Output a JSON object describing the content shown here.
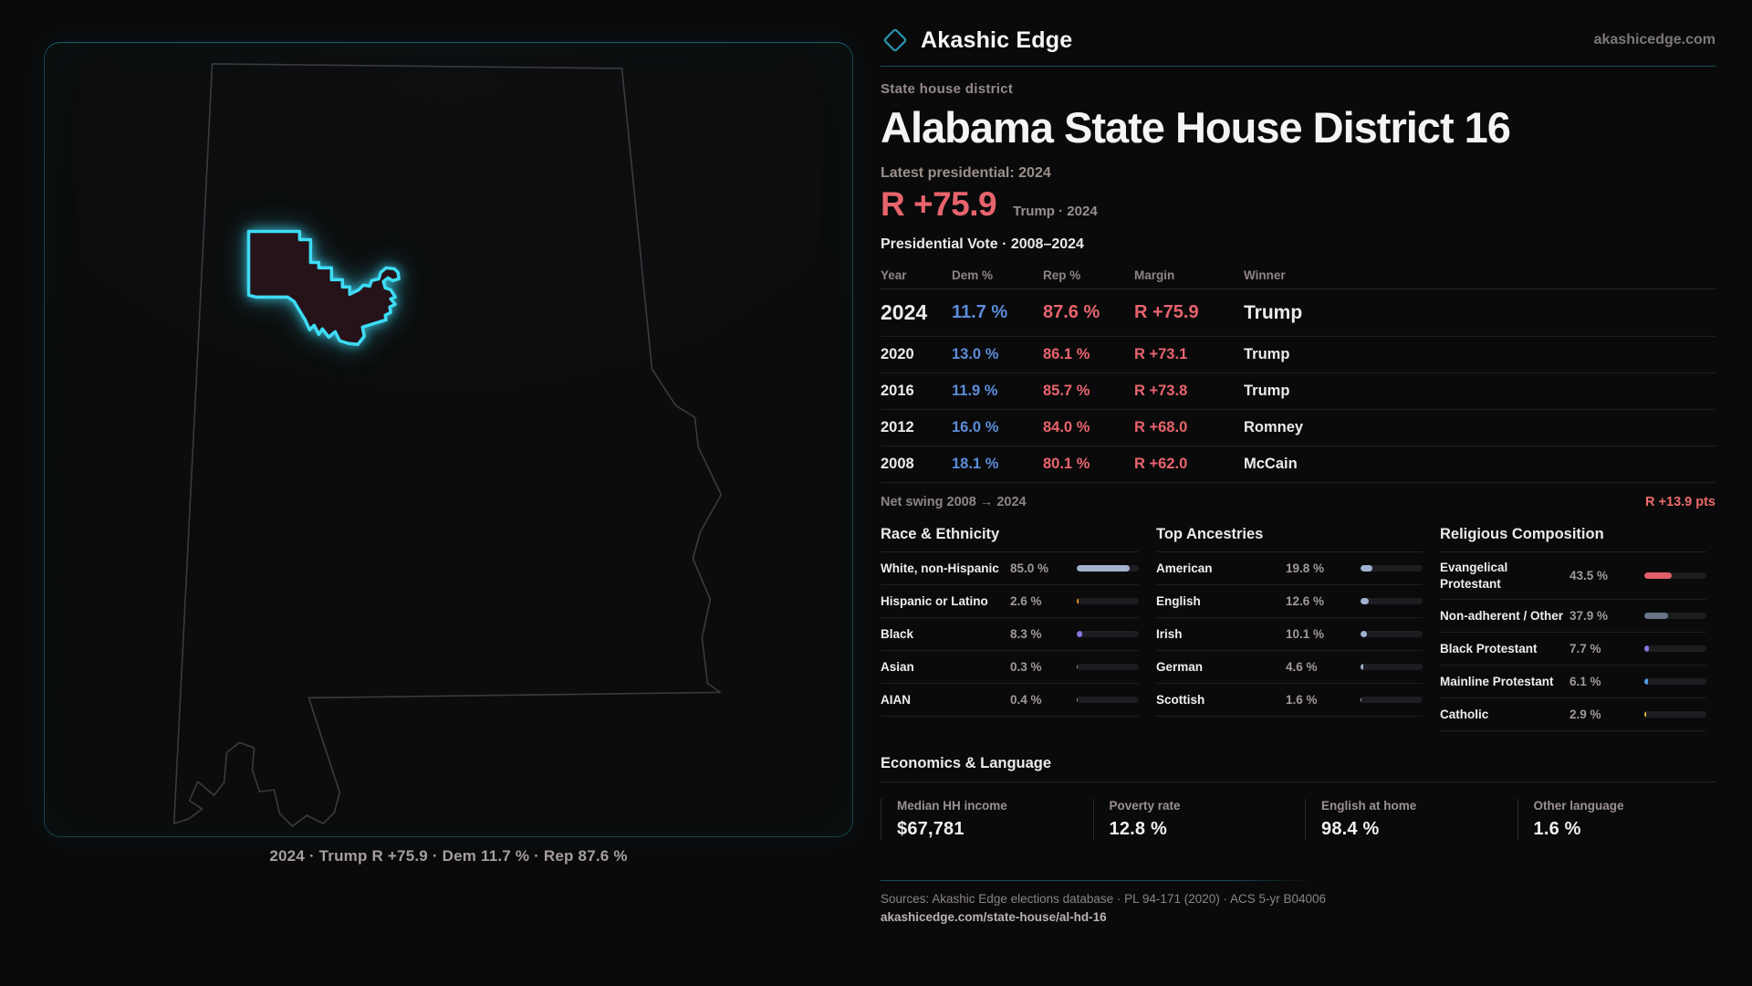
{
  "colors": {
    "dem": "#5b8dd9",
    "rep": "#e8646d",
    "accent": "#3edcf5",
    "swing": "#ee6b6b"
  },
  "brand": {
    "name": "Akashic Edge",
    "domain": "akashicedge.com"
  },
  "page": {
    "kicker": "State house district",
    "title": "Alabama State House District 16",
    "latest_label": "Latest presidential: 2024",
    "headline_margin": "R +75.9",
    "headline_sub": "Trump · 2024"
  },
  "vote_table": {
    "title": "Presidential Vote · 2008–2024",
    "columns": {
      "year": "Year",
      "dem": "Dem %",
      "rep": "Rep %",
      "margin": "Margin",
      "winner": "Winner"
    },
    "rows": [
      {
        "year": "2024",
        "dem": "11.7 %",
        "rep": "87.6 %",
        "margin": "R +75.9",
        "winner": "Trump"
      },
      {
        "year": "2020",
        "dem": "13.0 %",
        "rep": "86.1 %",
        "margin": "R +73.1",
        "winner": "Trump"
      },
      {
        "year": "2016",
        "dem": "11.9 %",
        "rep": "85.7 %",
        "margin": "R +73.8",
        "winner": "Trump"
      },
      {
        "year": "2012",
        "dem": "16.0 %",
        "rep": "84.0 %",
        "margin": "R +68.0",
        "winner": "Romney"
      },
      {
        "year": "2008",
        "dem": "18.1 %",
        "rep": "80.1 %",
        "margin": "R +62.0",
        "winner": "McCain"
      }
    ]
  },
  "net_swing": {
    "label": "Net swing 2008 → 2024",
    "value": "R +13.9 pts"
  },
  "demographics": [
    {
      "title": "Race & Ethnicity",
      "items": [
        {
          "label": "White, non-Hispanic",
          "value": "85.0 %",
          "pct": 85.0,
          "color": "#a3b1cf"
        },
        {
          "label": "Hispanic or Latino",
          "value": "2.6 %",
          "pct": 2.6,
          "color": "#e8991f"
        },
        {
          "label": "Black",
          "value": "8.3 %",
          "pct": 8.3,
          "color": "#8b74e0"
        },
        {
          "label": "Asian",
          "value": "0.3 %",
          "pct": 0.3,
          "color": "#8f9aa8"
        },
        {
          "label": "AIAN",
          "value": "0.4 %",
          "pct": 0.4,
          "color": "#8f9aa8"
        }
      ]
    },
    {
      "title": "Top Ancestries",
      "items": [
        {
          "label": "American",
          "value": "19.8 %",
          "pct": 19.8,
          "color": "#9fb3d0"
        },
        {
          "label": "English",
          "value": "12.6 %",
          "pct": 12.6,
          "color": "#9fb3d0"
        },
        {
          "label": "Irish",
          "value": "10.1 %",
          "pct": 10.1,
          "color": "#9fb3d0"
        },
        {
          "label": "German",
          "value": "4.6 %",
          "pct": 4.6,
          "color": "#9fb3d0"
        },
        {
          "label": "Scottish",
          "value": "1.6 %",
          "pct": 1.6,
          "color": "#9fb3d0"
        }
      ]
    },
    {
      "title": "Religious Composition",
      "items": [
        {
          "label": "Evangelical Protestant",
          "value": "43.5 %",
          "pct": 43.5,
          "color": "#e0606a"
        },
        {
          "label": "Non-adherent / Other",
          "value": "37.9 %",
          "pct": 37.9,
          "color": "#687487"
        },
        {
          "label": "Black Protestant",
          "value": "7.7 %",
          "pct": 7.7,
          "color": "#8b74e0"
        },
        {
          "label": "Mainline Protestant",
          "value": "6.1 %",
          "pct": 6.1,
          "color": "#4f9be4"
        },
        {
          "label": "Catholic",
          "value": "2.9 %",
          "pct": 2.9,
          "color": "#e0b93a"
        }
      ]
    }
  ],
  "economics": {
    "title": "Economics & Language",
    "stats": [
      {
        "label": "Median HH income",
        "value": "$67,781"
      },
      {
        "label": "Poverty rate",
        "value": "12.8 %"
      },
      {
        "label": "English at home",
        "value": "98.4 %"
      },
      {
        "label": "Other language",
        "value": "1.6 %"
      }
    ]
  },
  "footer": {
    "sources": "Sources: Akashic Edge elections database · PL 94-171 (2020) · ACS 5-yr B04006",
    "url": "akashicedge.com/state-house/al-hd-16"
  },
  "map": {
    "caption": "2024 · Trump  R +75.9 · Dem 11.7 % · Rep 87.6 %"
  }
}
